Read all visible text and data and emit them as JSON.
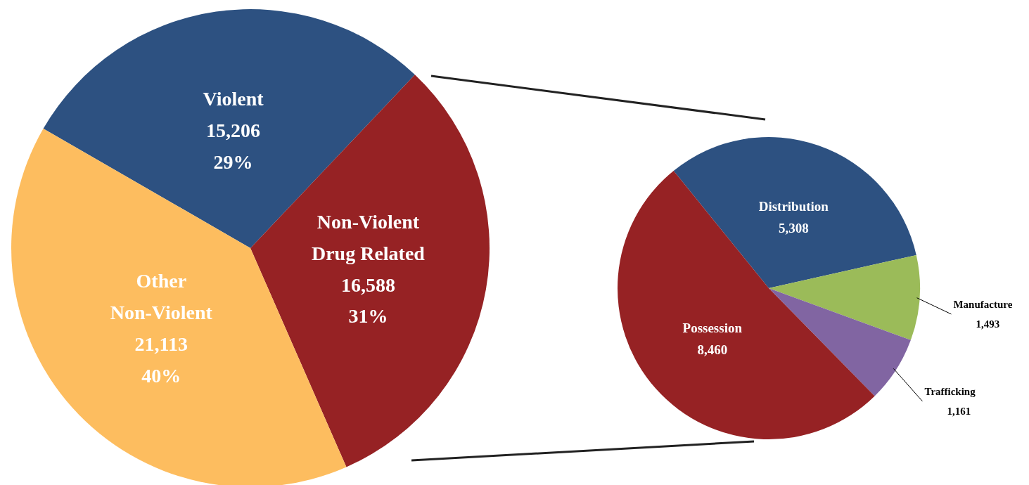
{
  "chart_data": [
    {
      "type": "pie",
      "categories": [
        "Violent",
        "Non-Violent Drug Related",
        "Other Non-Violent"
      ],
      "values": [
        15206,
        16588,
        21113
      ],
      "colors": [
        "#2d5181",
        "#962224",
        "#fdbd5f"
      ],
      "value_labels": [
        "15,206\n29%",
        "16,588\n31%",
        "21,113\n40%"
      ]
    },
    {
      "type": "pie",
      "categories": [
        "Distribution",
        "Manufacture",
        "Trafficking",
        "Possession"
      ],
      "values": [
        5308,
        1493,
        1161,
        8460
      ],
      "colors": [
        "#2d5181",
        "#9bbb59",
        "#8165a2",
        "#962224"
      ],
      "value_labels": [
        "5,308",
        "1,493",
        "1,161",
        "8,460"
      ]
    }
  ]
}
